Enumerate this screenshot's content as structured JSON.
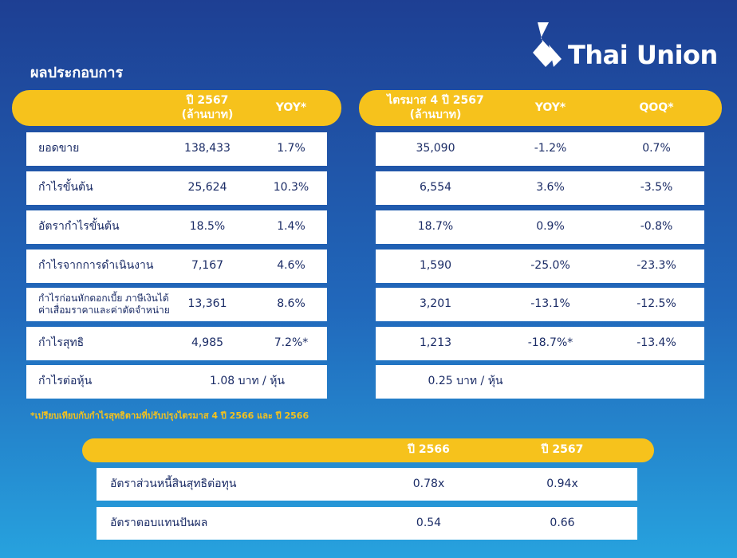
{
  "title": "ผลประกอบการ",
  "logo": "Thai Union",
  "annual": {
    "headers": [
      "ปี 2567\n(ล้านบาท)",
      "YOY*"
    ],
    "rows": [
      [
        "ยอดขาย",
        "138,433",
        "1.7%"
      ],
      [
        "กำไรขั้นต้น",
        "25,624",
        "10.3%"
      ],
      [
        "อัตรากำไรขั้นต้น",
        "18.5%",
        "1.4%"
      ],
      [
        "กำไรจากการดำเนินงาน",
        "7,167",
        "4.6%"
      ],
      [
        "กำไรก่อนหักดอกเบี้ย ภาษีเงินได้\nค่าเสื่อมราคาและค่าตัดจำหน่าย",
        "13,361",
        "8.6%"
      ],
      [
        "กำไรสุทธิ",
        "4,985",
        "7.2%*"
      ],
      [
        "กำไรต่อหุ้น",
        "1.08 บาท / หุ้น"
      ]
    ]
  },
  "quarter": {
    "headers": [
      "ไตรมาส 4 ปี 2567\n(ล้านบาท)",
      "YOY*",
      "QOQ*"
    ],
    "rows": [
      [
        "35,090",
        "-1.2%",
        "0.7%"
      ],
      [
        "6,554",
        "3.6%",
        "-3.5%"
      ],
      [
        "18.7%",
        "0.9%",
        "-0.8%"
      ],
      [
        "1,590",
        "-25.0%",
        "-23.3%"
      ],
      [
        "3,201",
        "-13.1%",
        "-12.5%"
      ],
      [
        "1,213",
        "-18.7%*",
        "-13.4%"
      ],
      [
        "0.25 บาท / หุ้น"
      ]
    ]
  },
  "footnote": "*เปรียบเทียบกับกำไรสุทธิตามที่ปรับปรุงไตรมาส 4 ปี 2566 และ ปี 2566",
  "ratios": {
    "headers": [
      "ปี 2566",
      "ปี 2567"
    ],
    "rows": [
      [
        "อัตราส่วนหนี้สินสุทธิต่อทุน",
        "0.78x",
        "0.94x"
      ],
      [
        "อัตราตอบแทนปันผล",
        "0.54",
        "0.66"
      ]
    ]
  }
}
